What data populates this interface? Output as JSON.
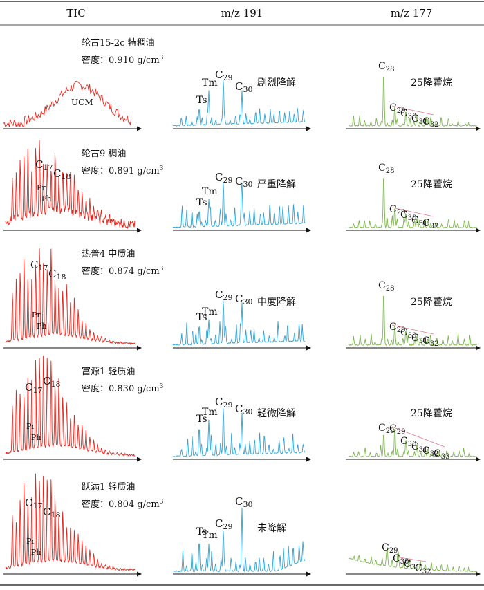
{
  "headers": [
    "TIC",
    "m/z 191",
    "m/z 177"
  ],
  "colors": {
    "tic": "#e8261d",
    "m191": "#2ea3d6",
    "m177": "#7ab648",
    "axis": "#111111",
    "marker_line": "#d9778a"
  },
  "chart_data": {
    "type": "line",
    "title": "",
    "rows": [
      {
        "well": "轮古15-2c",
        "oil_type": "特稠油",
        "density_label": "密度：",
        "density_value": "0.910 g/cm",
        "density_exp": "3",
        "degradation": "剧烈降解",
        "tic": {
          "ucm": true,
          "peaks": [],
          "labels": [
            "UCM"
          ]
        },
        "m191": {
          "labels": [
            "Ts",
            "Tm",
            "C29",
            "C30"
          ]
        },
        "m177": {
          "marker_label": "25降藿烷",
          "labels": [
            "C28",
            "C29",
            "C30",
            "C31",
            "C32"
          ]
        }
      },
      {
        "well": "轮古9",
        "oil_type": "稠油",
        "density_label": "密度：",
        "density_value": "0.891 g/cm",
        "density_exp": "3",
        "degradation": "严重降解",
        "tic": {
          "ucm": false,
          "labels": [
            "C17",
            "C18",
            "Pr",
            "Ph"
          ]
        },
        "m191": {
          "labels": [
            "Ts",
            "Tm",
            "C29",
            "C30"
          ]
        },
        "m177": {
          "marker_label": "25降藿烷",
          "labels": [
            "C28",
            "C29",
            "C30",
            "C31",
            "C32"
          ]
        }
      },
      {
        "well": "热普4",
        "oil_type": "中质油",
        "density_label": "密度：",
        "density_value": "0.874 g/cm",
        "density_exp": "3",
        "degradation": "中度降解",
        "tic": {
          "ucm": false,
          "labels": [
            "C17",
            "C18",
            "Pr",
            "Ph"
          ]
        },
        "m191": {
          "labels": [
            "Ts",
            "Tm",
            "C29",
            "C30"
          ]
        },
        "m177": {
          "marker_label": "25降藿烷",
          "labels": [
            "C28",
            "C29",
            "C30",
            "C31",
            "C32"
          ]
        }
      },
      {
        "well": "富源1",
        "oil_type": "轻质油",
        "density_label": "密度：",
        "density_value": "0.830 g/cm",
        "density_exp": "3",
        "degradation": "轻微降解",
        "tic": {
          "ucm": false,
          "labels": [
            "C17",
            "C18",
            "Pr",
            "Ph"
          ]
        },
        "m191": {
          "labels": [
            "Ts",
            "Tm",
            "C29",
            "C30"
          ]
        },
        "m177": {
          "marker_label": "25降藿烷",
          "labels": [
            "C28",
            "C29",
            "C30",
            "C31",
            "C32",
            "C33"
          ]
        }
      },
      {
        "well": "跃满1",
        "oil_type": "轻质油",
        "density_label": "密度：",
        "density_value": "0.804 g/cm",
        "density_exp": "3",
        "degradation": "未降解",
        "tic": {
          "ucm": false,
          "labels": [
            "C17",
            "C18",
            "Pr",
            "Ph"
          ]
        },
        "m191": {
          "labels": [
            "Ts",
            "Tm",
            "C29",
            "C30"
          ]
        },
        "m177": {
          "marker_label": "",
          "labels": [
            "C29",
            "C30",
            "C31",
            "C32"
          ]
        }
      }
    ]
  }
}
